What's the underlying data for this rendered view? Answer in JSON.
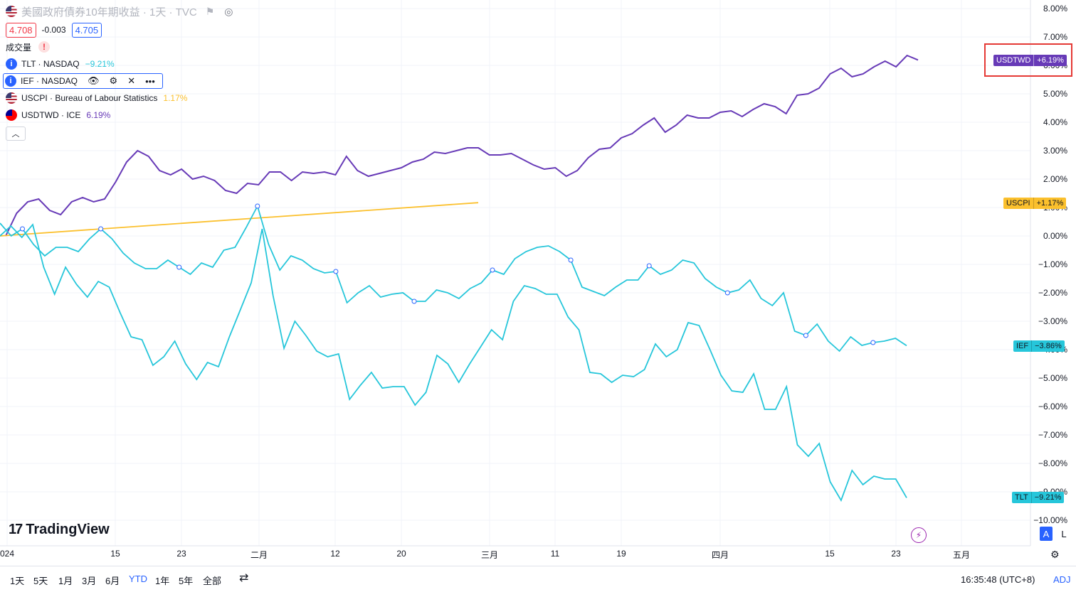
{
  "legend": {
    "title": "美國政府債券10年期收益 · 1天 · TVC",
    "bid": "4.708",
    "change": "-0.003",
    "ask": "4.705",
    "volume_label": "成交量",
    "series": [
      {
        "label": "TLT · NASDAQ",
        "value": "−9.21%",
        "color": "#26c6da"
      },
      {
        "label": "IEF · NASDAQ",
        "value": "",
        "color": "#26c6da"
      },
      {
        "label": "USCPI · Bureau of Labour Statistics",
        "value": "1.17%",
        "color": "#fbc02d"
      },
      {
        "label": "USDTWD · ICE",
        "value": "6.19%",
        "color": "#673ab7"
      }
    ]
  },
  "y_axis_labels": [
    "8.00%",
    "7.00%",
    "6.00%",
    "5.00%",
    "4.00%",
    "3.00%",
    "2.00%",
    "1.00%",
    "0.00%",
    "−1.00%",
    "−2.00%",
    "−3.00%",
    "−4.00%",
    "−5.00%",
    "−6.00%",
    "−7.00%",
    "−8.00%",
    "−9.00%",
    "−10.00%"
  ],
  "x_axis_labels": [
    "024",
    "15",
    "23",
    "二月",
    "12",
    "20",
    "三月",
    "11",
    "19",
    "四月",
    "15",
    "23",
    "五月"
  ],
  "tags": {
    "usdtwd": {
      "name": "USDTWD",
      "value": "+6.19%",
      "color": "#673ab7"
    },
    "uscpi": {
      "name": "USCPI",
      "value": "+1.17%",
      "color": "#fbc02d"
    },
    "ief": {
      "name": "IEF",
      "value": "−3.86%",
      "color": "#26c6da"
    },
    "tlt": {
      "name": "TLT",
      "value": "−9.21%",
      "color": "#26c6da"
    }
  },
  "bottom": {
    "timeframes": [
      "1天",
      "5天",
      "1月",
      "3月",
      "6月",
      "YTD",
      "1年",
      "5年",
      "全部"
    ],
    "active": "YTD",
    "clock": "16:35:48 (UTC+8)",
    "adj": "ADJ",
    "scale_a": "A",
    "scale_l": "L"
  },
  "brand": "TradingView",
  "chart_data": {
    "type": "line",
    "ylim": [
      -10,
      8
    ],
    "yunit": "%",
    "series": [
      {
        "name": "USDTWD",
        "color": "#673ab7",
        "values": [
          0,
          0.8,
          1.2,
          1.3,
          0.9,
          0.75,
          1.2,
          1.35,
          1.2,
          1.3,
          1.9,
          2.6,
          3.0,
          2.8,
          2.3,
          2.15,
          2.35,
          2.0,
          2.1,
          1.95,
          1.6,
          1.5,
          1.85,
          1.8,
          2.25,
          2.25,
          1.95,
          2.25,
          2.2,
          2.25,
          2.15,
          2.8,
          2.3,
          2.1,
          2.2,
          2.3,
          2.4,
          2.6,
          2.7,
          2.95,
          2.9,
          3.0,
          3.1,
          3.1,
          2.85,
          2.85,
          2.9,
          2.7,
          2.5,
          2.35,
          2.4,
          2.1,
          2.3,
          2.75,
          3.05,
          3.1,
          3.45,
          3.6,
          3.9,
          4.15,
          3.65,
          3.9,
          4.25,
          4.15,
          4.15,
          4.35,
          4.4,
          4.2,
          4.45,
          4.65,
          4.55,
          4.3,
          4.95,
          5.0,
          5.2,
          5.7,
          5.9,
          5.6,
          5.7,
          5.95,
          6.15,
          5.95,
          6.35,
          6.19
        ]
      },
      {
        "name": "USCPI",
        "color": "#fbc02d",
        "values": [
          0,
          1.17
        ]
      },
      {
        "name": "IEF",
        "color": "#26c6da",
        "values": [
          0.45,
          0,
          0.25,
          -0.3,
          -0.7,
          -0.4,
          -0.4,
          -0.55,
          -0.1,
          0.25,
          -0.1,
          -0.6,
          -0.95,
          -1.15,
          -1.15,
          -0.85,
          -1.1,
          -1.35,
          -0.95,
          -1.1,
          -0.5,
          -0.4,
          0.3,
          1.05,
          -0.3,
          -1.2,
          -0.7,
          -0.85,
          -1.15,
          -1.3,
          -1.25,
          -2.35,
          -2.0,
          -1.75,
          -2.15,
          -2.05,
          -2.0,
          -2.3,
          -2.3,
          -1.9,
          -2.0,
          -2.2,
          -1.85,
          -1.65,
          -1.2,
          -1.35,
          -0.8,
          -0.55,
          -0.4,
          -0.35,
          -0.55,
          -0.85,
          -1.8,
          -1.95,
          -2.1,
          -1.8,
          -1.55,
          -1.55,
          -1.05,
          -1.35,
          -1.2,
          -0.85,
          -0.95,
          -1.5,
          -1.8,
          -2.0,
          -1.9,
          -1.55,
          -2.2,
          -2.45,
          -2.0,
          -3.35,
          -3.5,
          -3.1,
          -3.7,
          -4.05,
          -3.55,
          -3.85,
          -3.75,
          -3.7,
          -3.6,
          -3.86
        ]
      },
      {
        "name": "TLT",
        "color": "#26c6da",
        "values": [
          0,
          0.35,
          -0.05,
          0.4,
          -1.1,
          -2.05,
          -1.1,
          -1.7,
          -2.15,
          -1.6,
          -1.8,
          -2.7,
          -3.55,
          -3.65,
          -4.55,
          -4.25,
          -3.7,
          -4.5,
          -5.05,
          -4.45,
          -4.6,
          -3.55,
          -2.6,
          -1.65,
          0.25,
          -2.1,
          -3.95,
          -3.0,
          -3.5,
          -4.05,
          -4.25,
          -4.15,
          -5.75,
          -5.25,
          -4.8,
          -5.35,
          -5.3,
          -5.3,
          -5.95,
          -5.5,
          -4.2,
          -4.5,
          -5.15,
          -4.5,
          -3.9,
          -3.3,
          -3.65,
          -2.3,
          -1.75,
          -1.85,
          -2.05,
          -2.05,
          -2.85,
          -3.3,
          -4.8,
          -4.85,
          -5.15,
          -4.9,
          -4.95,
          -4.7,
          -3.8,
          -4.25,
          -4.0,
          -3.05,
          -3.15,
          -4.0,
          -4.9,
          -5.45,
          -5.5,
          -4.85,
          -6.1,
          -6.1,
          -5.3,
          -7.35,
          -7.75,
          -7.3,
          -8.65,
          -9.3,
          -8.25,
          -8.75,
          -8.45,
          -8.55,
          -8.55,
          -9.21
        ]
      }
    ]
  }
}
